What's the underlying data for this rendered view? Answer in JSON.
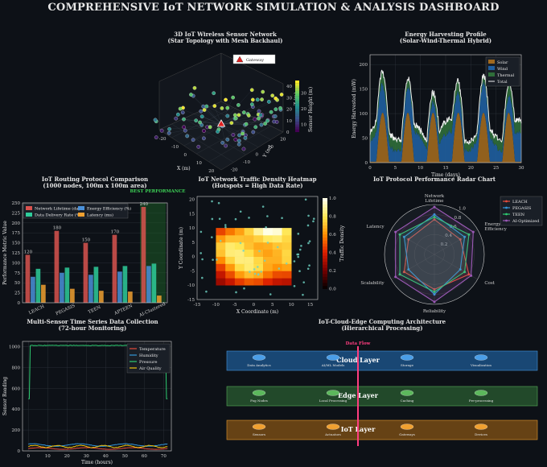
{
  "dashboard_title": "COMPREHENSIVE IoT NETWORK SIMULATION & ANALYSIS DASHBOARD",
  "chart_data": [
    {
      "id": "network3d",
      "type": "scatter",
      "title": "3D IoT Wireless Sensor Network",
      "subtitle": "(Star Topology with Mesh Backhaul)",
      "xlabel": "X (m)",
      "ylabel": "Y (m)",
      "zlabel": "Z (m)",
      "xticks": [
        "-20",
        "-10",
        "0",
        "10",
        "20"
      ],
      "yticks": [
        "-20",
        "-10",
        "0",
        "10",
        "20"
      ],
      "zticks": [
        "0",
        "10",
        "20",
        "30",
        "40"
      ],
      "legend": [
        "Gateway"
      ],
      "colorbar_label": "Sensor Height (m)",
      "colorbar_ticks": [
        "10",
        "20",
        "30"
      ],
      "colorbar_range": [
        5,
        38
      ],
      "node_count": 100
    },
    {
      "id": "energy",
      "type": "area",
      "title": "Energy Harvesting Profile",
      "subtitle": "(Solar-Wind-Thermal Hybrid)",
      "xlabel": "Time (days)",
      "ylabel": "Energy Harvested (mW)",
      "xlim": [
        0,
        30
      ],
      "ylim": [
        0,
        220
      ],
      "xticks": [
        0,
        5,
        10,
        15,
        20,
        25,
        30
      ],
      "yticks": [
        0,
        50,
        100,
        150,
        200
      ],
      "series": [
        {
          "name": "Solar",
          "color": "#a0691e"
        },
        {
          "name": "Wind",
          "color": "#1f5fa0"
        },
        {
          "name": "Thermal",
          "color": "#2f6e3a"
        },
        {
          "name": "Total",
          "color": "#f0f0f0"
        }
      ]
    },
    {
      "id": "routing",
      "type": "bar",
      "title": "IoT Routing Protocol Comparison",
      "subtitle": "(1000 nodes, 100m x 100m area)",
      "annotation": "BEST PERFORMANCE",
      "ylabel": "Performance Metric Value",
      "ylim": [
        0,
        250
      ],
      "yticks": [
        0,
        25,
        50,
        75,
        100,
        125,
        150,
        175,
        200,
        225,
        250
      ],
      "categories": [
        "LEACH",
        "PEGASIS",
        "TEEN",
        "APTEEN",
        "AI-Clustered"
      ],
      "series": [
        {
          "name": "Network Lifetime (days)",
          "color": "#d9534f",
          "values": [
            120,
            180,
            150,
            170,
            240
          ]
        },
        {
          "name": "Energy Efficiency (%)",
          "color": "#4a90d9",
          "values": [
            65,
            75,
            70,
            78,
            92
          ]
        },
        {
          "name": "Data Delivery Rate (%)",
          "color": "#2ecc9a",
          "values": [
            85,
            88,
            90,
            92,
            98
          ]
        },
        {
          "name": "Latency (ms)",
          "color": "#f0a030",
          "values": [
            45,
            35,
            30,
            28,
            18
          ]
        }
      ]
    },
    {
      "id": "heatmap",
      "type": "heatmap",
      "title": "IoT Network Traffic Density Heatmap",
      "subtitle": "(Hotspots = High Data Rate)",
      "xlabel": "X Coordinate (m)",
      "ylabel": "Y Coordinate (m)",
      "xlim": [
        -15,
        17
      ],
      "ylim": [
        -15,
        21
      ],
      "xticks": [
        -15,
        -10,
        -5,
        0,
        5,
        10,
        15
      ],
      "yticks": [
        -15,
        -10,
        -5,
        0,
        5,
        10,
        15,
        20
      ],
      "colorbar_label": "Traffic Density",
      "colorbar_ticks": [
        "0.0",
        "0.2",
        "0.4",
        "0.6",
        "0.8",
        "1.0"
      ]
    },
    {
      "id": "radar",
      "type": "radar",
      "title": "IoT Protocol Performance Radar Chart",
      "axes": [
        "Network Lifetime",
        "Energy Efficiency",
        "Cost",
        "Reliability",
        "Scalability",
        "Latency"
      ],
      "rticks": [
        "0.2",
        "0.4",
        "0.6",
        "0.8",
        "1.0"
      ],
      "series": [
        {
          "name": "LEACH",
          "color": "#e74c3c",
          "values": [
            0.7,
            0.6,
            0.8,
            0.7,
            0.7,
            0.6
          ]
        },
        {
          "name": "PEGASIS",
          "color": "#3498db",
          "values": [
            0.8,
            0.7,
            0.6,
            0.8,
            0.6,
            0.7
          ]
        },
        {
          "name": "TEEN",
          "color": "#2ecc71",
          "values": [
            0.75,
            0.8,
            0.7,
            0.75,
            0.8,
            0.8
          ]
        },
        {
          "name": "AI-Optimized",
          "color": "#9b59b6",
          "values": [
            0.95,
            0.9,
            0.85,
            0.95,
            0.9,
            0.9
          ]
        }
      ]
    },
    {
      "id": "timeseries",
      "type": "line",
      "title": "Multi-Sensor Time Series Data Collection",
      "subtitle": "(72-hour Monitoring)",
      "xlabel": "Time (hours)",
      "ylabel": "Sensor Reading",
      "xlim": [
        -3,
        74
      ],
      "ylim": [
        0,
        1050
      ],
      "xticks": [
        0,
        10,
        20,
        30,
        40,
        50,
        60,
        70
      ],
      "yticks": [
        0,
        200,
        400,
        600,
        800,
        1000
      ],
      "series": [
        {
          "name": "Temperature",
          "color": "#e74c3c"
        },
        {
          "name": "Humidity",
          "color": "#3498db"
        },
        {
          "name": "Pressure",
          "color": "#2ecc71"
        },
        {
          "name": "Air Quality",
          "color": "#f1c40f"
        }
      ]
    }
  ],
  "architecture": {
    "title": "IoT-Cloud-Edge Computing Architecture",
    "subtitle": "(Hierarchical Processing)",
    "flow_label": "Data Flow",
    "layers": [
      {
        "name": "Cloud Layer",
        "fill": "#1a4a7a",
        "node": "#4a9ee8",
        "items": [
          "Data Analytics",
          "AI/ML Models",
          "Storage",
          "Visualization"
        ]
      },
      {
        "name": "Edge Layer",
        "fill": "#244d2c",
        "node": "#5cb85c",
        "items": [
          "Fog Nodes",
          "Local Processing",
          "Caching",
          "Pre-processing"
        ]
      },
      {
        "name": "IoT Layer",
        "fill": "#6b4515",
        "node": "#f0a030",
        "items": [
          "Sensors",
          "Actuators",
          "Gateways",
          "Devices"
        ]
      }
    ]
  }
}
